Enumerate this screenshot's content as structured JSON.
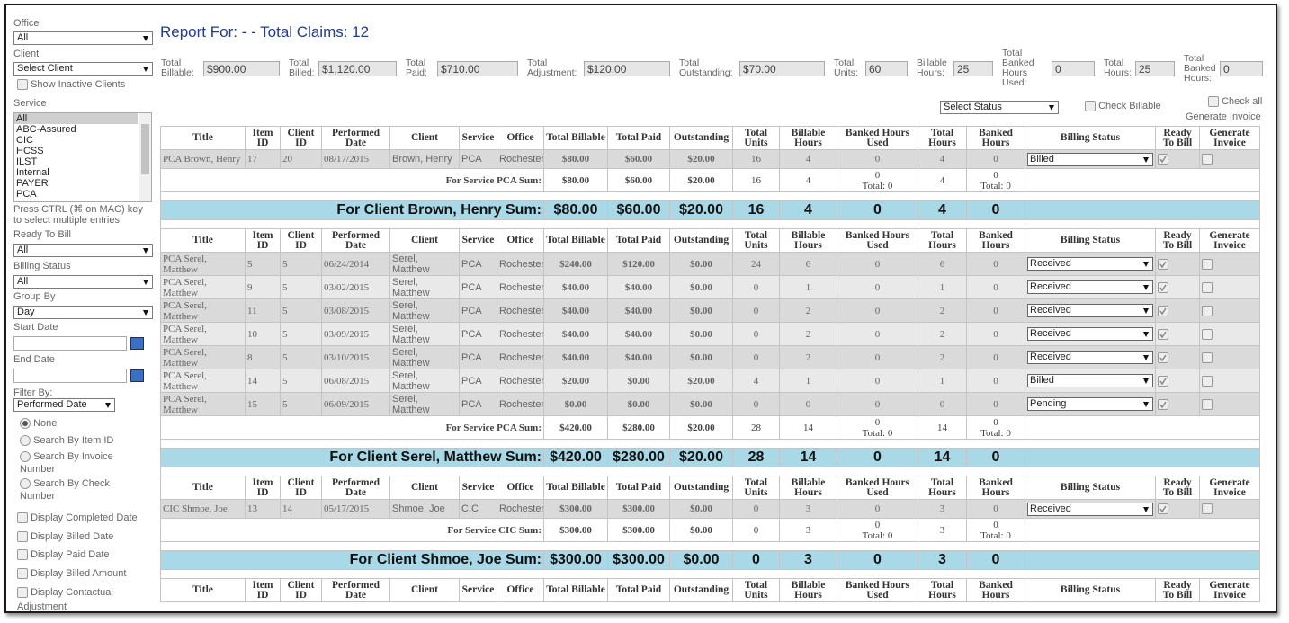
{
  "sidebar": {
    "office": {
      "label": "Office",
      "value": "All"
    },
    "client": {
      "label": "Client",
      "value": "Select Client"
    },
    "show_inactive": "Show Inactive Clients",
    "service": {
      "label": "Service",
      "options": [
        "All",
        "ABC-Assured",
        "CIC",
        "HCSS",
        "ILST",
        "Internal",
        "PAYER",
        "PCA"
      ]
    },
    "hint": "Press CTRL (⌘ on MAC) key to select multiple entries",
    "ready_to_bill": {
      "label": "Ready To Bill",
      "value": "All"
    },
    "billing_status": {
      "label": "Billing Status",
      "value": "All"
    },
    "group_by": {
      "label": "Group By",
      "value": "Day"
    },
    "start_date": "Start Date",
    "end_date": "End Date",
    "filter_by": {
      "label": "Filter By:",
      "value": "Performed Date"
    },
    "radios": [
      "None",
      "Search By Item ID",
      "Search By Invoice Number",
      "Search By Check Number"
    ],
    "checkboxes": [
      "Display Completed Date",
      "Display Billed Date",
      "Display Paid Date",
      "Display Billed Amount",
      "Display Contactual Adjustment"
    ]
  },
  "header": {
    "title": "Report For: - - Total Claims: 12"
  },
  "totals": [
    {
      "label": "Total Billable:",
      "value": "$900.00"
    },
    {
      "label": "Total Billed:",
      "value": "$1,120.00"
    },
    {
      "label": "Total Paid:",
      "value": "$710.00"
    },
    {
      "label": "Total Adjustment:",
      "value": "$120.00"
    },
    {
      "label": "Total Outstanding:",
      "value": "$70.00"
    },
    {
      "label": "Total Units:",
      "value": "60"
    },
    {
      "label": "Billable Hours:",
      "value": "25"
    },
    {
      "label": "Total Banked Hours Used:",
      "value": "0"
    },
    {
      "label": "Total Hours:",
      "value": "25"
    },
    {
      "label": "Total Banked Hours:",
      "value": "0"
    }
  ],
  "controls": {
    "select_status": "Select Status",
    "check_billable": "Check Billable",
    "check_all": "Check all",
    "generate_invoice": "Generate Invoice"
  },
  "table": {
    "columns": [
      "Title",
      "Item ID",
      "Client ID",
      "Performed Date",
      "Client",
      "Service",
      "Office",
      "Total Billable",
      "Total Paid",
      "Outstanding",
      "Total Units",
      "Billable Hours",
      "Banked Hours Used",
      "Total Hours",
      "Banked Hours",
      "Billing Status",
      "Ready To Bill",
      "Generate Invoice"
    ],
    "groups": [
      {
        "rows": [
          [
            "PCA Brown, Henry",
            "17",
            "20",
            "08/17/2015",
            "Brown, Henry",
            "PCA",
            "Rochester",
            "$80.00",
            "$60.00",
            "$20.00",
            "16",
            "4",
            "0",
            "4",
            "0",
            "Billed"
          ]
        ],
        "service_sum": {
          "label": "For Service PCA Sum:",
          "cells": [
            "$80.00",
            "$60.00",
            "$20.00",
            "16",
            "4",
            {
              "value": "0",
              "total": "Total: 0"
            },
            "4",
            {
              "value": "0",
              "total": "Total: 0"
            }
          ]
        },
        "client_sum": {
          "label": "For Client Brown, Henry Sum:",
          "cells": [
            "$80.00",
            "$60.00",
            "$20.00",
            "16",
            "4",
            "0",
            "4",
            "0"
          ]
        }
      },
      {
        "rows": [
          [
            "PCA Serel, Matthew",
            "5",
            "5",
            "06/24/2014",
            "Serel, Matthew",
            "PCA",
            "Rochester",
            "$240.00",
            "$120.00",
            "$0.00",
            "24",
            "6",
            "0",
            "6",
            "0",
            "Received"
          ],
          [
            "PCA Serel, Matthew",
            "9",
            "5",
            "03/02/2015",
            "Serel, Matthew",
            "PCA",
            "Rochester",
            "$40.00",
            "$40.00",
            "$0.00",
            "0",
            "1",
            "0",
            "1",
            "0",
            "Received"
          ],
          [
            "PCA Serel, Matthew",
            "11",
            "5",
            "03/08/2015",
            "Serel, Matthew",
            "PCA",
            "Rochester",
            "$40.00",
            "$40.00",
            "$0.00",
            "0",
            "2",
            "0",
            "2",
            "0",
            "Received"
          ],
          [
            "PCA Serel, Matthew",
            "10",
            "5",
            "03/09/2015",
            "Serel, Matthew",
            "PCA",
            "Rochester",
            "$40.00",
            "$40.00",
            "$0.00",
            "0",
            "2",
            "0",
            "2",
            "0",
            "Received"
          ],
          [
            "PCA Serel, Matthew",
            "8",
            "5",
            "03/10/2015",
            "Serel, Matthew",
            "PCA",
            "Rochester",
            "$40.00",
            "$40.00",
            "$0.00",
            "0",
            "2",
            "0",
            "2",
            "0",
            "Received"
          ],
          [
            "PCA Serel, Matthew",
            "14",
            "5",
            "06/08/2015",
            "Serel, Matthew",
            "PCA",
            "Rochester",
            "$20.00",
            "$0.00",
            "$20.00",
            "4",
            "1",
            "0",
            "1",
            "0",
            "Billed"
          ],
          [
            "PCA Serel, Matthew",
            "15",
            "5",
            "06/09/2015",
            "Serel, Matthew",
            "PCA",
            "Rochester",
            "$0.00",
            "$0.00",
            "$0.00",
            "0",
            "0",
            "0",
            "0",
            "0",
            "Pending"
          ]
        ],
        "service_sum": {
          "label": "For Service PCA Sum:",
          "cells": [
            "$420.00",
            "$280.00",
            "$20.00",
            "28",
            "14",
            {
              "value": "0",
              "total": "Total: 0"
            },
            "14",
            {
              "value": "0",
              "total": "Total: 0"
            }
          ]
        },
        "client_sum": {
          "label": "For Client Serel, Matthew Sum:",
          "cells": [
            "$420.00",
            "$280.00",
            "$20.00",
            "28",
            "14",
            "0",
            "14",
            "0"
          ]
        }
      },
      {
        "rows": [
          [
            "CIC Shmoe, Joe",
            "13",
            "14",
            "05/17/2015",
            "Shmoe, Joe",
            "CIC",
            "Rochester",
            "$300.00",
            "$300.00",
            "$0.00",
            "0",
            "3",
            "0",
            "3",
            "0",
            "Received"
          ]
        ],
        "service_sum": {
          "label": "For Service CIC Sum:",
          "cells": [
            "$300.00",
            "$300.00",
            "$0.00",
            "0",
            "3",
            {
              "value": "0",
              "total": "Total: 0"
            },
            "3",
            {
              "value": "0",
              "total": "Total: 0"
            }
          ]
        },
        "client_sum": {
          "label": "For Client Shmoe, Joe Sum:",
          "cells": [
            "$300.00",
            "$300.00",
            "$0.00",
            "0",
            "3",
            "0",
            "3",
            "0"
          ]
        }
      }
    ]
  }
}
